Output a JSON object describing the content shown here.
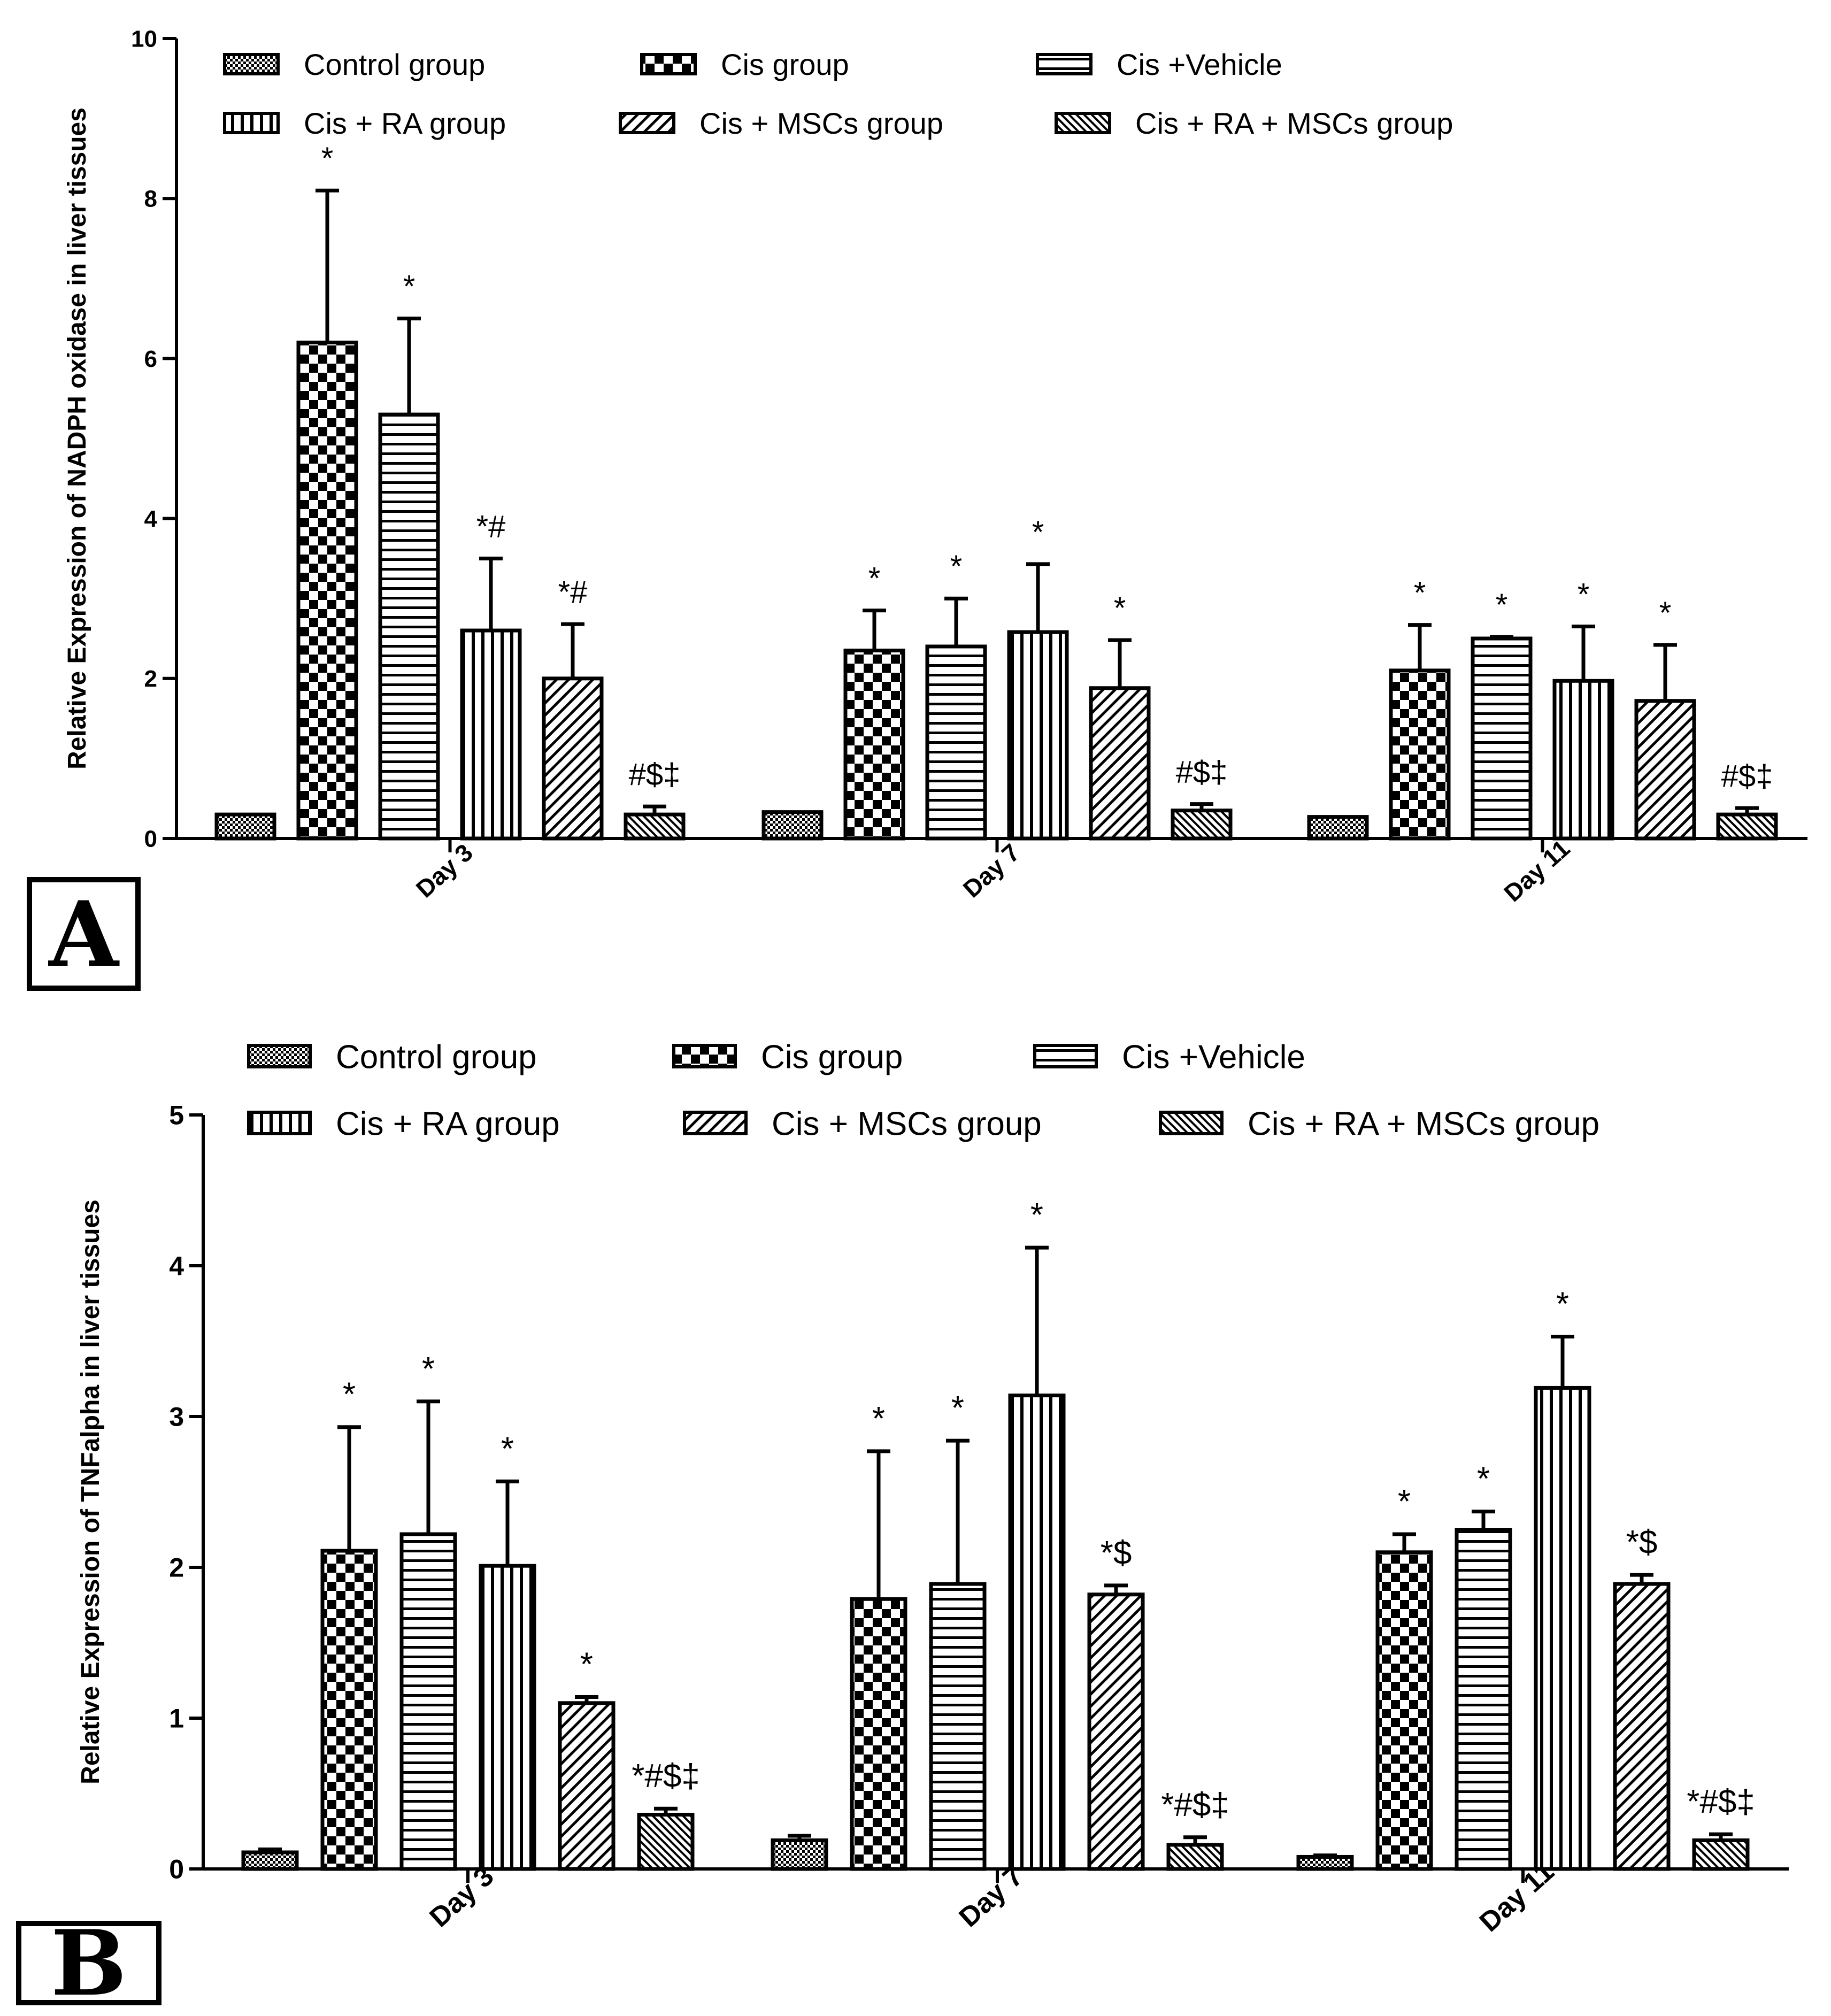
{
  "panel_labels": [
    "A",
    "B"
  ],
  "group_names": [
    "Control group",
    "Cis group",
    "Cis +Vehicle",
    "Cis + RA group",
    "Cis + MSCs group",
    "Cis + RA + MSCs group"
  ],
  "colors": {
    "ink": "#000000",
    "background": "#ffffff"
  },
  "chart_data": [
    {
      "type": "bar",
      "panel": "A",
      "title": "",
      "xlabel": "",
      "ylabel": "Relative Expression of NADPH oxidase in liver tissues",
      "categories": [
        "Day 3",
        "Day 7",
        "Day 11"
      ],
      "ylim": [
        0,
        10
      ],
      "yticks": [
        0,
        2,
        4,
        6,
        8,
        10
      ],
      "legend": "top",
      "series": [
        {
          "name": "Control group",
          "pattern": "fine-check",
          "values": [
            0.3,
            0.33,
            0.27
          ],
          "errors": [
            0,
            0,
            0
          ],
          "annotations": [
            "",
            "",
            ""
          ]
        },
        {
          "name": "Cis group",
          "pattern": "checker",
          "values": [
            6.2,
            2.35,
            2.1
          ],
          "errors": [
            1.9,
            0.5,
            0.57
          ],
          "annotations": [
            "*",
            "*",
            "*"
          ]
        },
        {
          "name": "Cis +Vehicle",
          "pattern": "horizontal",
          "values": [
            5.3,
            2.4,
            2.5
          ],
          "errors": [
            1.2,
            0.6,
            0.02
          ],
          "annotations": [
            "*",
            "*",
            "*"
          ]
        },
        {
          "name": "Cis + RA group",
          "pattern": "vertical",
          "values": [
            2.6,
            2.58,
            1.97
          ],
          "errors": [
            0.9,
            0.85,
            0.68
          ],
          "annotations": [
            "*#",
            "*",
            "*"
          ]
        },
        {
          "name": "Cis + MSCs group",
          "pattern": "diagonal",
          "values": [
            2.0,
            1.88,
            1.72
          ],
          "errors": [
            0.68,
            0.6,
            0.7
          ],
          "annotations": [
            "*#",
            "*",
            "*"
          ]
        },
        {
          "name": "Cis + RA + MSCs group",
          "pattern": "diagonal-dense",
          "values": [
            0.3,
            0.35,
            0.3
          ],
          "errors": [
            0.1,
            0.08,
            0.08
          ],
          "annotations": [
            "#$‡",
            "#$‡",
            "#$‡"
          ]
        }
      ]
    },
    {
      "type": "bar",
      "panel": "B",
      "title": "",
      "xlabel": "",
      "ylabel": "Relative Expression of TNFalpha in liver tissues",
      "categories": [
        "Day 3",
        "Day 7",
        "Day 11"
      ],
      "ylim": [
        0,
        5
      ],
      "yticks": [
        0,
        1,
        2,
        3,
        4,
        5
      ],
      "legend": "top",
      "series": [
        {
          "name": "Control group",
          "pattern": "fine-check",
          "values": [
            0.11,
            0.19,
            0.08
          ],
          "errors": [
            0.02,
            0.03,
            0.01
          ],
          "annotations": [
            "",
            "",
            ""
          ]
        },
        {
          "name": "Cis group",
          "pattern": "checker",
          "values": [
            2.11,
            1.79,
            2.1
          ],
          "errors": [
            0.82,
            0.98,
            0.12
          ],
          "annotations": [
            "*",
            "*",
            "*"
          ]
        },
        {
          "name": "Cis +Vehicle",
          "pattern": "horizontal",
          "values": [
            2.22,
            1.89,
            2.25
          ],
          "errors": [
            0.88,
            0.95,
            0.12
          ],
          "annotations": [
            "*",
            "*",
            "*"
          ]
        },
        {
          "name": "Cis + RA group",
          "pattern": "vertical",
          "values": [
            2.01,
            3.14,
            3.19
          ],
          "errors": [
            0.56,
            0.98,
            0.34
          ],
          "annotations": [
            "*",
            "*",
            "*"
          ]
        },
        {
          "name": "Cis + MSCs group",
          "pattern": "diagonal",
          "values": [
            1.1,
            1.82,
            1.89
          ],
          "errors": [
            0.04,
            0.06,
            0.06
          ],
          "annotations": [
            "*",
            "*$",
            "*$"
          ]
        },
        {
          "name": "Cis + RA + MSCs group",
          "pattern": "diagonal-dense",
          "values": [
            0.36,
            0.16,
            0.19
          ],
          "errors": [
            0.04,
            0.05,
            0.04
          ],
          "annotations": [
            "*#$‡",
            "*#$‡",
            "*#$‡"
          ]
        }
      ]
    }
  ]
}
